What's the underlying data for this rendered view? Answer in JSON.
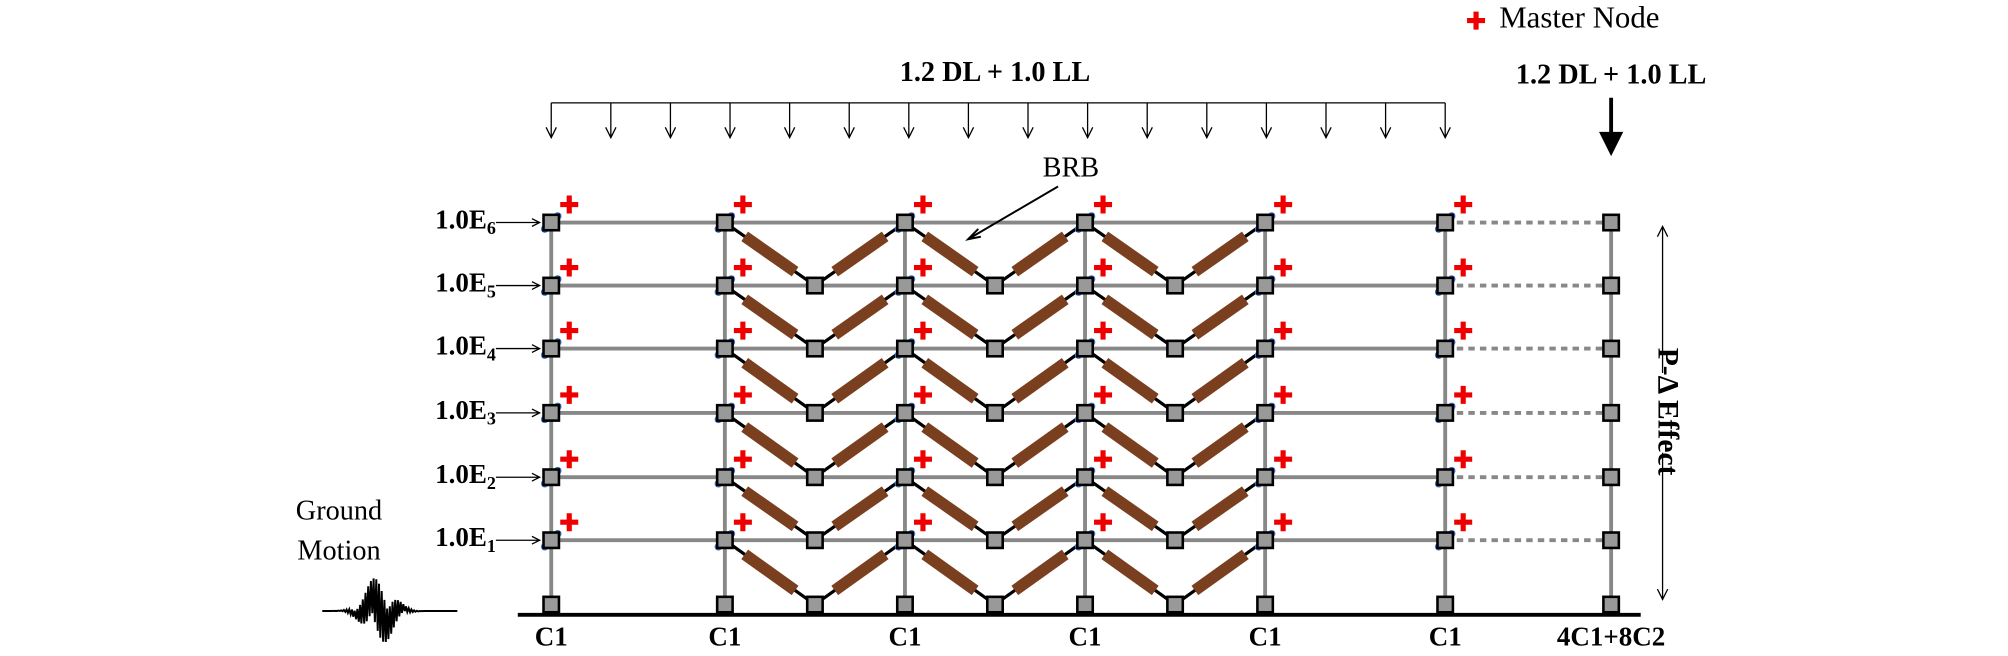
{
  "legend": {
    "label": "Master Node"
  },
  "loads": {
    "distributed": "1.2 DL + 1.0 LL",
    "point": "1.2 DL + 1.0 LL"
  },
  "brb_label": "BRB",
  "floors": [
    {
      "label": "1.0E",
      "sub": "6"
    },
    {
      "label": "1.0E",
      "sub": "5"
    },
    {
      "label": "1.0E",
      "sub": "4"
    },
    {
      "label": "1.0E",
      "sub": "3"
    },
    {
      "label": "1.0E",
      "sub": "2"
    },
    {
      "label": "1.0E",
      "sub": "1"
    }
  ],
  "ground_motion": [
    "Ground",
    "Motion"
  ],
  "p_delta": "P-Δ Effect",
  "columns": [
    "C1",
    "C1",
    "C1",
    "C1",
    "C1",
    "C1",
    "4C1+8C2"
  ]
}
